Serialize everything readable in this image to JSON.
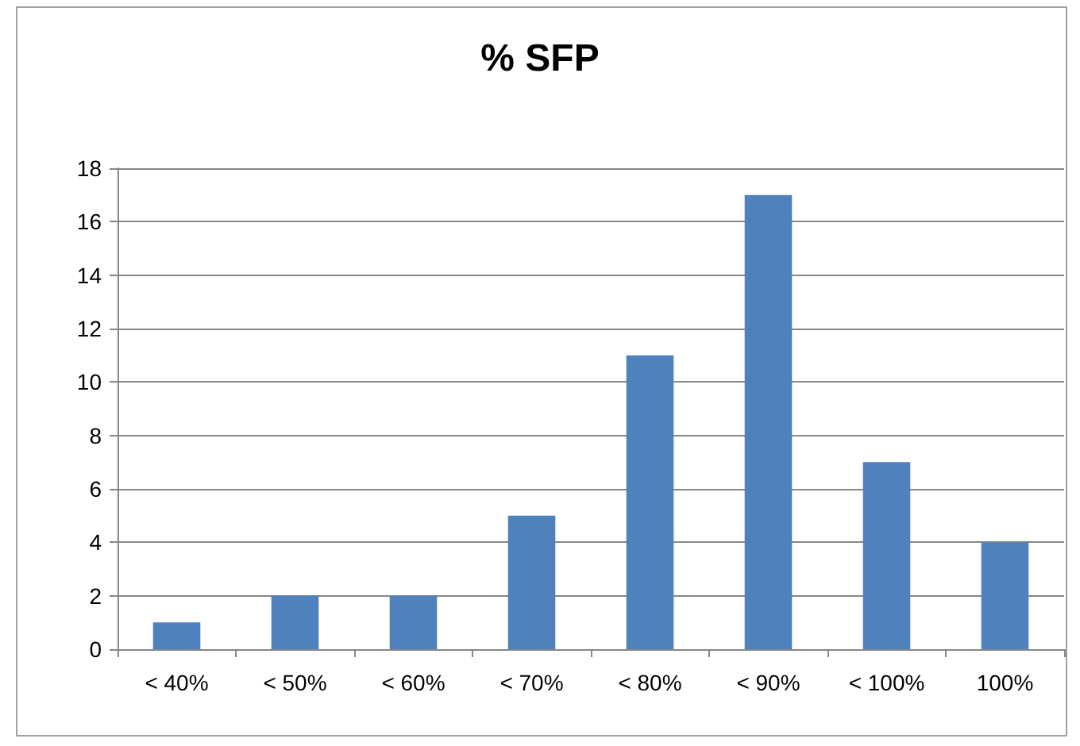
{
  "chart_data": {
    "type": "bar",
    "title": "% SFP",
    "categories": [
      "< 40%",
      "< 50%",
      "< 60%",
      "< 70%",
      "< 80%",
      "< 90%",
      "< 100%",
      "100%"
    ],
    "values": [
      1,
      2,
      2,
      5,
      11,
      17,
      7,
      4
    ],
    "color": "#4f81bd",
    "ylim": [
      0,
      18
    ],
    "yticks": [
      0,
      2,
      4,
      6,
      8,
      10,
      12,
      14,
      16,
      18
    ],
    "grid": "y"
  }
}
